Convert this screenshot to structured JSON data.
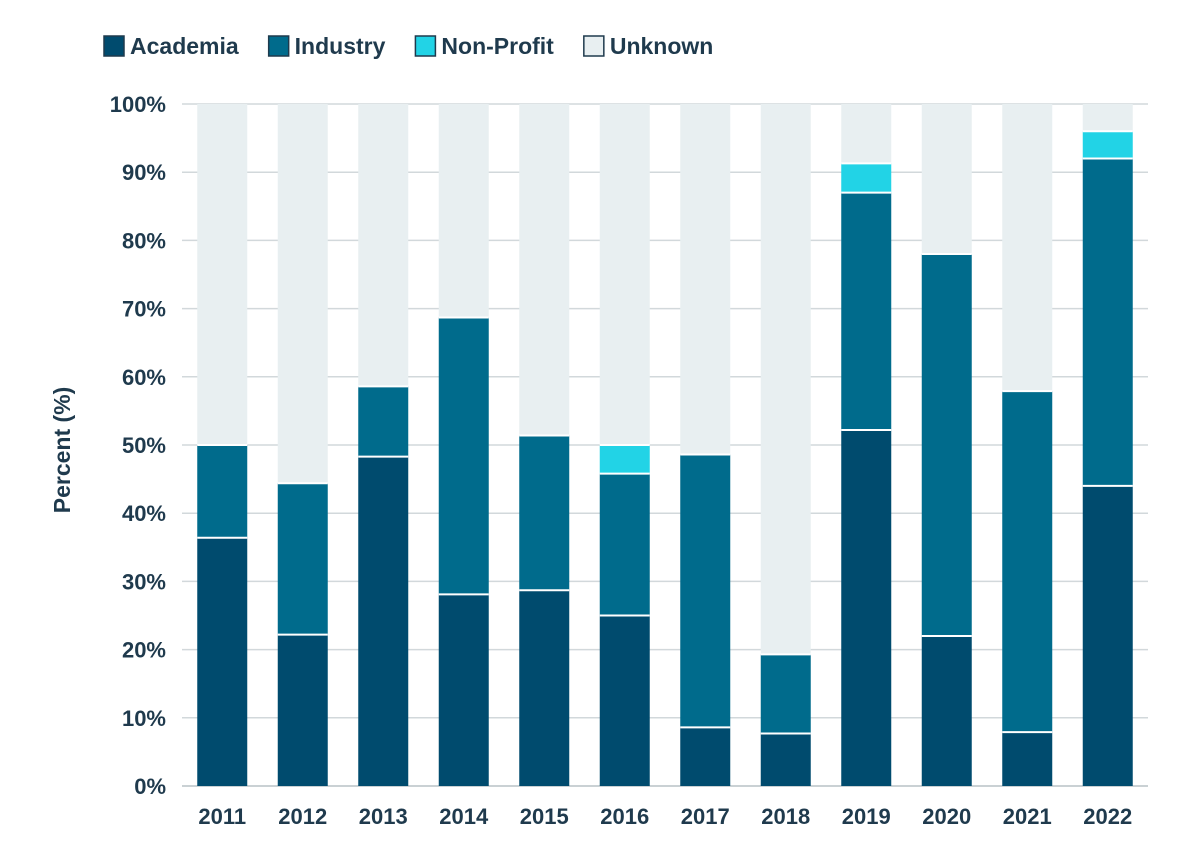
{
  "chart_data": {
    "type": "bar",
    "stacked": true,
    "title": "",
    "xlabel": "",
    "ylabel": "Percent (%)",
    "ylim": [
      0,
      100
    ],
    "y_ticks": [
      "0%",
      "10%",
      "20%",
      "30%",
      "40%",
      "50%",
      "60%",
      "70%",
      "80%",
      "90%",
      "100%"
    ],
    "grid": true,
    "legend_position": "top-left",
    "categories": [
      "2011",
      "2012",
      "2013",
      "2014",
      "2015",
      "2016",
      "2017",
      "2018",
      "2019",
      "2020",
      "2021",
      "2022"
    ],
    "series": [
      {
        "name": "Academia",
        "color": "#004b6e",
        "values": [
          36.4,
          22.2,
          48.3,
          28.1,
          28.7,
          25.0,
          8.6,
          7.7,
          52.2,
          22.0,
          7.9,
          44.0
        ]
      },
      {
        "name": "Industry",
        "color": "#006b8c",
        "values": [
          13.6,
          22.2,
          10.3,
          40.6,
          22.7,
          20.8,
          40.0,
          11.6,
          34.8,
          56.0,
          50.0,
          48.0
        ]
      },
      {
        "name": "Non-Profit",
        "color": "#22d3e6",
        "values": [
          0,
          0,
          0,
          0,
          0,
          4.2,
          0,
          0,
          4.3,
          0,
          0,
          4.0
        ]
      },
      {
        "name": "Unknown",
        "color": "#e8eff1",
        "values": [
          50.0,
          55.6,
          41.4,
          31.3,
          48.6,
          50.0,
          51.4,
          80.7,
          8.7,
          22.0,
          42.1,
          4.0
        ]
      }
    ]
  }
}
